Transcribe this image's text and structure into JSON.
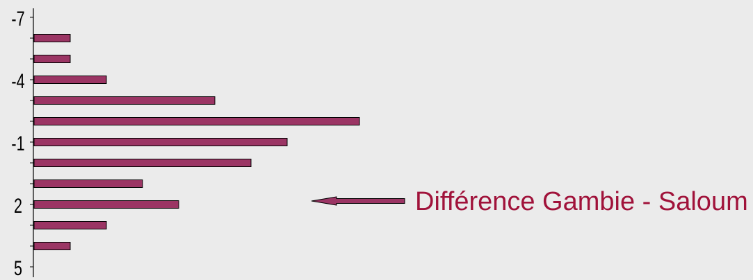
{
  "chart_data": {
    "type": "bar",
    "orientation": "horizontal",
    "y_tick_labels": [
      "-7",
      "-4",
      "-1",
      "2",
      "5"
    ],
    "categories": [
      -6,
      -5,
      -4,
      -3,
      -2,
      -1,
      0,
      1,
      2,
      3,
      4
    ],
    "values": [
      1,
      1,
      2,
      5,
      9,
      7,
      6,
      3,
      4,
      2,
      1
    ],
    "ylim": [
      -7,
      5
    ],
    "title": "",
    "xlabel": "",
    "ylabel": "",
    "grid": false,
    "bar_color": "#9b3564",
    "annotation": {
      "text": "Différence Gambie - Saloum",
      "color": "#a0123a"
    }
  }
}
